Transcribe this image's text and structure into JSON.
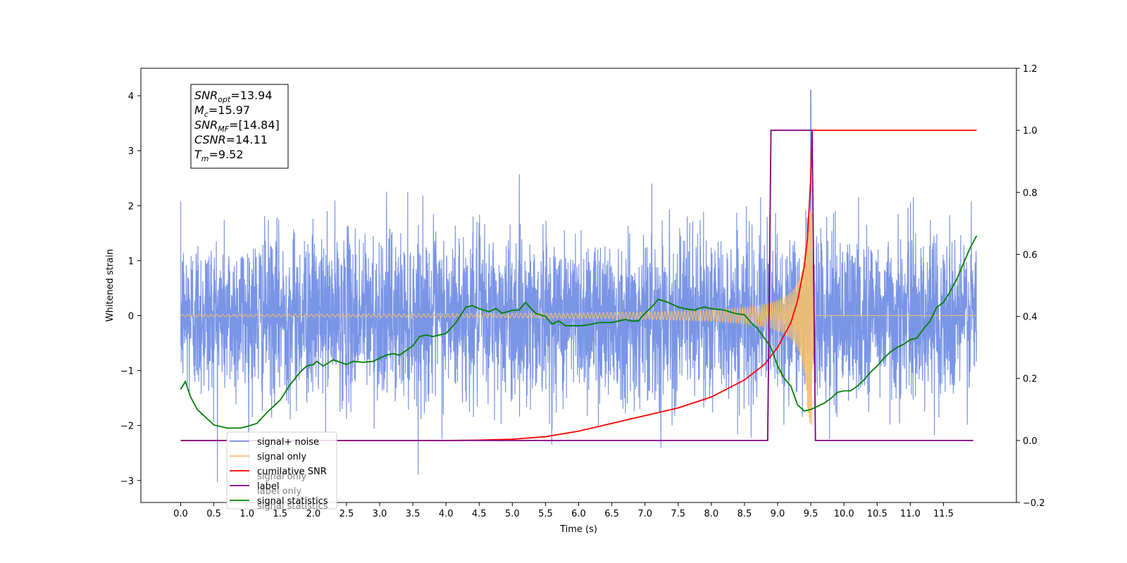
{
  "chart_data": {
    "type": "line",
    "title": "",
    "xlabel": "Time (s)",
    "ylabel": "Whitened strain",
    "xlim": [
      -0.6,
      12.6
    ],
    "ylim": [
      -3.4,
      4.5
    ],
    "y2lim": [
      -0.2,
      1.2
    ],
    "grid": false,
    "x_ticks": [
      0.0,
      0.5,
      1.0,
      1.5,
      2.0,
      2.5,
      3.0,
      3.5,
      4.0,
      4.5,
      5.0,
      5.5,
      6.0,
      6.5,
      7.0,
      7.5,
      8.0,
      8.5,
      9.0,
      9.5,
      10.0,
      10.5,
      11.0,
      11.5
    ],
    "x_tick_labels": [
      "0.0",
      "0.5",
      "1.0",
      "1.5",
      "2.0",
      "2.5",
      "3.0",
      "3.5",
      "4.0",
      "4.5",
      "5.0",
      "5.5",
      "6.0",
      "6.5",
      "7.0",
      "7.5",
      "8.0",
      "8.5",
      "9.0",
      "9.5",
      "10.0",
      "10.5",
      "11.0",
      "11.5"
    ],
    "y_ticks": [
      -3,
      -2,
      -1,
      0,
      1,
      2,
      3,
      4
    ],
    "y_tick_labels": [
      "−3",
      "−2",
      "−1",
      "0",
      "1",
      "2",
      "3",
      "4"
    ],
    "y2_ticks": [
      -0.2,
      0.0,
      0.2,
      0.4,
      0.6,
      0.8,
      1.0,
      1.2
    ],
    "y2_tick_labels": [
      "−0.2",
      "0.0",
      "0.2",
      "0.4",
      "0.6",
      "0.8",
      "1.0",
      "1.2"
    ],
    "legend_position": "lower-left",
    "annotation": {
      "lines": [
        {
          "base": "SNR",
          "sub": "opt",
          "rest": "=13.94"
        },
        {
          "base": "M",
          "sub": "c",
          "rest": "=15.97"
        },
        {
          "base": "SNR",
          "sub": "MF",
          "rest": "=[14.84]"
        },
        {
          "base": "CSNR",
          "sub": "",
          "rest": "=14.11"
        },
        {
          "base": "T",
          "sub": "m",
          "rest": "=9.52"
        }
      ]
    },
    "series": [
      {
        "name": "signal+ noise",
        "color": "#7a95e6",
        "axis": "left",
        "style": "noise",
        "description_values": {
          "t_start": 0.0,
          "t_end": 12.0,
          "std": 0.75,
          "peak": 4.1,
          "peak_t": 9.5
        }
      },
      {
        "name": "signal only",
        "color": "#f5bf6c",
        "axis": "left",
        "style": "chirp",
        "chirp": {
          "t_start": 0.0,
          "t_merge": 9.52,
          "t_end": 12.0,
          "amp_at_5": 0.04,
          "amp_peak": 2.0
        }
      },
      {
        "name": "cumilative SNR",
        "color": "#ff0000",
        "axis": "right",
        "points": [
          [
            0.0,
            0.0
          ],
          [
            4.0,
            0.0
          ],
          [
            4.5,
            0.001
          ],
          [
            5.0,
            0.004
          ],
          [
            5.5,
            0.012
          ],
          [
            6.0,
            0.03
          ],
          [
            6.5,
            0.055
          ],
          [
            7.0,
            0.08
          ],
          [
            7.5,
            0.105
          ],
          [
            8.0,
            0.14
          ],
          [
            8.5,
            0.195
          ],
          [
            8.8,
            0.245
          ],
          [
            9.0,
            0.3
          ],
          [
            9.2,
            0.38
          ],
          [
            9.3,
            0.45
          ],
          [
            9.4,
            0.56
          ],
          [
            9.45,
            0.65
          ],
          [
            9.5,
            0.85
          ],
          [
            9.52,
            1.0
          ],
          [
            12.0,
            1.0
          ]
        ]
      },
      {
        "name": "label",
        "color": "#800080",
        "axis": "right",
        "points": [
          [
            0.0,
            0.0
          ],
          [
            8.85,
            0.0
          ],
          [
            8.9,
            1.0
          ],
          [
            9.52,
            1.0
          ],
          [
            9.57,
            0.0
          ],
          [
            11.95,
            0.0
          ]
        ]
      },
      {
        "name": "signal statistics",
        "color": "#008000",
        "axis": "right",
        "points": [
          [
            0.0,
            0.165
          ],
          [
            0.07,
            0.19
          ],
          [
            0.15,
            0.14
          ],
          [
            0.25,
            0.1
          ],
          [
            0.4,
            0.07
          ],
          [
            0.5,
            0.05
          ],
          [
            0.7,
            0.04
          ],
          [
            0.9,
            0.04
          ],
          [
            1.0,
            0.045
          ],
          [
            1.15,
            0.055
          ],
          [
            1.3,
            0.09
          ],
          [
            1.5,
            0.13
          ],
          [
            1.65,
            0.18
          ],
          [
            1.8,
            0.22
          ],
          [
            1.9,
            0.24
          ],
          [
            2.0,
            0.245
          ],
          [
            2.05,
            0.255
          ],
          [
            2.15,
            0.24
          ],
          [
            2.3,
            0.26
          ],
          [
            2.5,
            0.245
          ],
          [
            2.6,
            0.255
          ],
          [
            2.75,
            0.252
          ],
          [
            2.9,
            0.255
          ],
          [
            3.0,
            0.265
          ],
          [
            3.1,
            0.275
          ],
          [
            3.2,
            0.28
          ],
          [
            3.3,
            0.275
          ],
          [
            3.5,
            0.305
          ],
          [
            3.6,
            0.335
          ],
          [
            3.7,
            0.34
          ],
          [
            3.8,
            0.335
          ],
          [
            3.9,
            0.34
          ],
          [
            4.0,
            0.345
          ],
          [
            4.15,
            0.38
          ],
          [
            4.3,
            0.43
          ],
          [
            4.4,
            0.435
          ],
          [
            4.5,
            0.425
          ],
          [
            4.65,
            0.415
          ],
          [
            4.75,
            0.425
          ],
          [
            4.85,
            0.41
          ],
          [
            5.0,
            0.42
          ],
          [
            5.1,
            0.42
          ],
          [
            5.2,
            0.445
          ],
          [
            5.35,
            0.41
          ],
          [
            5.5,
            0.4
          ],
          [
            5.6,
            0.375
          ],
          [
            5.7,
            0.385
          ],
          [
            5.8,
            0.37
          ],
          [
            5.9,
            0.37
          ],
          [
            6.05,
            0.37
          ],
          [
            6.2,
            0.375
          ],
          [
            6.3,
            0.38
          ],
          [
            6.5,
            0.38
          ],
          [
            6.7,
            0.39
          ],
          [
            6.8,
            0.385
          ],
          [
            6.9,
            0.385
          ],
          [
            7.0,
            0.41
          ],
          [
            7.1,
            0.43
          ],
          [
            7.2,
            0.455
          ],
          [
            7.35,
            0.445
          ],
          [
            7.5,
            0.43
          ],
          [
            7.6,
            0.425
          ],
          [
            7.75,
            0.42
          ],
          [
            7.8,
            0.425
          ],
          [
            7.9,
            0.43
          ],
          [
            8.0,
            0.425
          ],
          [
            8.2,
            0.42
          ],
          [
            8.35,
            0.41
          ],
          [
            8.5,
            0.405
          ],
          [
            8.6,
            0.38
          ],
          [
            8.7,
            0.36
          ],
          [
            8.8,
            0.33
          ],
          [
            8.9,
            0.3
          ],
          [
            9.0,
            0.24
          ],
          [
            9.1,
            0.2
          ],
          [
            9.2,
            0.175
          ],
          [
            9.3,
            0.115
          ],
          [
            9.4,
            0.095
          ],
          [
            9.5,
            0.1
          ],
          [
            9.6,
            0.11
          ],
          [
            9.7,
            0.12
          ],
          [
            9.8,
            0.135
          ],
          [
            9.9,
            0.155
          ],
          [
            10.0,
            0.16
          ],
          [
            10.1,
            0.16
          ],
          [
            10.2,
            0.175
          ],
          [
            10.3,
            0.195
          ],
          [
            10.4,
            0.22
          ],
          [
            10.5,
            0.24
          ],
          [
            10.6,
            0.265
          ],
          [
            10.7,
            0.285
          ],
          [
            10.8,
            0.3
          ],
          [
            10.9,
            0.31
          ],
          [
            11.0,
            0.325
          ],
          [
            11.1,
            0.33
          ],
          [
            11.2,
            0.36
          ],
          [
            11.3,
            0.385
          ],
          [
            11.4,
            0.43
          ],
          [
            11.5,
            0.445
          ],
          [
            11.6,
            0.48
          ],
          [
            11.7,
            0.52
          ],
          [
            11.8,
            0.57
          ],
          [
            11.9,
            0.62
          ],
          [
            12.0,
            0.66
          ]
        ]
      }
    ],
    "legend_order": [
      "signal+ noise",
      "signal only",
      "cumilative SNR",
      "label",
      "signal statistics"
    ],
    "legend_overlap_text": [
      "signal only",
      "label only",
      "signal statistics"
    ]
  }
}
